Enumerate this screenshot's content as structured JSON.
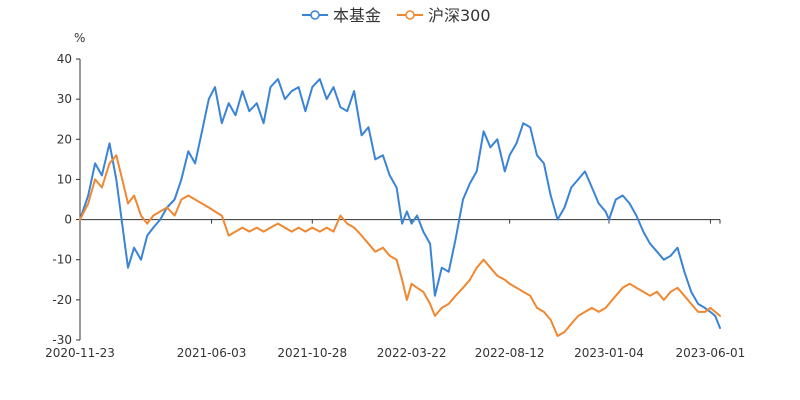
{
  "chart_data": {
    "type": "line",
    "ylabel": "%",
    "ylim": [
      -30,
      40
    ],
    "yticks": [
      40,
      30,
      20,
      10,
      0,
      -10,
      -20,
      -30
    ],
    "xtick_labels": [
      "2020-11-23",
      "2021-06-03",
      "2021-10-28",
      "2022-03-22",
      "2022-08-12",
      "2023-01-04",
      "2023-06-01"
    ],
    "x_range": [
      "2020-11-23",
      "2023-06-15"
    ],
    "grid": false,
    "legend_position": "top-center",
    "colors": {
      "fund": "#3a84d8",
      "index": "#f08731",
      "axis": "#333333"
    },
    "series": [
      {
        "name": "本基金",
        "color": "#3a84d8",
        "points": [
          [
            "2020-11-23",
            0
          ],
          [
            "2020-12-05",
            6
          ],
          [
            "2020-12-15",
            14
          ],
          [
            "2020-12-25",
            11
          ],
          [
            "2021-01-05",
            19
          ],
          [
            "2021-01-15",
            10
          ],
          [
            "2021-01-25",
            -3
          ],
          [
            "2021-02-01",
            -12
          ],
          [
            "2021-02-10",
            -7
          ],
          [
            "2021-02-20",
            -10
          ],
          [
            "2021-03-01",
            -4
          ],
          [
            "2021-03-10",
            -2
          ],
          [
            "2021-03-20",
            0
          ],
          [
            "2021-03-30",
            3
          ],
          [
            "2021-04-10",
            5
          ],
          [
            "2021-04-20",
            10
          ],
          [
            "2021-04-30",
            17
          ],
          [
            "2021-05-10",
            14
          ],
          [
            "2021-05-20",
            22
          ],
          [
            "2021-05-30",
            30
          ],
          [
            "2021-06-08",
            33
          ],
          [
            "2021-06-18",
            24
          ],
          [
            "2021-06-28",
            29
          ],
          [
            "2021-07-08",
            26
          ],
          [
            "2021-07-18",
            32
          ],
          [
            "2021-07-28",
            27
          ],
          [
            "2021-08-08",
            29
          ],
          [
            "2021-08-18",
            24
          ],
          [
            "2021-08-28",
            33
          ],
          [
            "2021-09-08",
            35
          ],
          [
            "2021-09-18",
            30
          ],
          [
            "2021-09-28",
            32
          ],
          [
            "2021-10-08",
            33
          ],
          [
            "2021-10-18",
            27
          ],
          [
            "2021-10-28",
            33
          ],
          [
            "2021-11-08",
            35
          ],
          [
            "2021-11-18",
            30
          ],
          [
            "2021-11-28",
            33
          ],
          [
            "2021-12-08",
            28
          ],
          [
            "2021-12-18",
            27
          ],
          [
            "2021-12-28",
            32
          ],
          [
            "2022-01-08",
            21
          ],
          [
            "2022-01-18",
            23
          ],
          [
            "2022-01-28",
            15
          ],
          [
            "2022-02-08",
            16
          ],
          [
            "2022-02-18",
            11
          ],
          [
            "2022-02-28",
            8
          ],
          [
            "2022-03-08",
            -1
          ],
          [
            "2022-03-15",
            2
          ],
          [
            "2022-03-22",
            -1
          ],
          [
            "2022-03-30",
            1
          ],
          [
            "2022-04-08",
            -3
          ],
          [
            "2022-04-18",
            -6
          ],
          [
            "2022-04-25",
            -19
          ],
          [
            "2022-05-05",
            -12
          ],
          [
            "2022-05-15",
            -13
          ],
          [
            "2022-05-25",
            -5
          ],
          [
            "2022-06-05",
            5
          ],
          [
            "2022-06-15",
            9
          ],
          [
            "2022-06-25",
            12
          ],
          [
            "2022-07-05",
            22
          ],
          [
            "2022-07-15",
            18
          ],
          [
            "2022-07-25",
            20
          ],
          [
            "2022-08-05",
            12
          ],
          [
            "2022-08-12",
            16
          ],
          [
            "2022-08-22",
            19
          ],
          [
            "2022-09-01",
            24
          ],
          [
            "2022-09-11",
            23
          ],
          [
            "2022-09-21",
            16
          ],
          [
            "2022-10-01",
            14
          ],
          [
            "2022-10-11",
            6
          ],
          [
            "2022-10-21",
            0
          ],
          [
            "2022-10-31",
            3
          ],
          [
            "2022-11-10",
            8
          ],
          [
            "2022-11-20",
            10
          ],
          [
            "2022-11-30",
            12
          ],
          [
            "2022-12-10",
            8
          ],
          [
            "2022-12-20",
            4
          ],
          [
            "2022-12-30",
            2
          ],
          [
            "2023-01-04",
            0
          ],
          [
            "2023-01-14",
            5
          ],
          [
            "2023-01-24",
            6
          ],
          [
            "2023-02-03",
            4
          ],
          [
            "2023-02-13",
            1
          ],
          [
            "2023-02-23",
            -3
          ],
          [
            "2023-03-05",
            -6
          ],
          [
            "2023-03-15",
            -8
          ],
          [
            "2023-03-25",
            -10
          ],
          [
            "2023-04-04",
            -9
          ],
          [
            "2023-04-14",
            -7
          ],
          [
            "2023-04-24",
            -13
          ],
          [
            "2023-05-04",
            -18
          ],
          [
            "2023-05-14",
            -21
          ],
          [
            "2023-05-24",
            -22
          ],
          [
            "2023-06-01",
            -23
          ],
          [
            "2023-06-08",
            -24
          ],
          [
            "2023-06-15",
            -27
          ]
        ]
      },
      {
        "name": "沪深300",
        "color": "#f08731",
        "points": [
          [
            "2020-11-23",
            0
          ],
          [
            "2020-12-05",
            4
          ],
          [
            "2020-12-15",
            10
          ],
          [
            "2020-12-25",
            8
          ],
          [
            "2021-01-05",
            14
          ],
          [
            "2021-01-15",
            16
          ],
          [
            "2021-01-25",
            9
          ],
          [
            "2021-02-01",
            4
          ],
          [
            "2021-02-10",
            6
          ],
          [
            "2021-02-20",
            1
          ],
          [
            "2021-03-01",
            -1
          ],
          [
            "2021-03-10",
            1
          ],
          [
            "2021-03-20",
            2
          ],
          [
            "2021-03-30",
            3
          ],
          [
            "2021-04-10",
            1
          ],
          [
            "2021-04-20",
            5
          ],
          [
            "2021-04-30",
            6
          ],
          [
            "2021-05-10",
            5
          ],
          [
            "2021-05-20",
            4
          ],
          [
            "2021-05-30",
            3
          ],
          [
            "2021-06-08",
            2
          ],
          [
            "2021-06-18",
            1
          ],
          [
            "2021-06-28",
            -4
          ],
          [
            "2021-07-08",
            -3
          ],
          [
            "2021-07-18",
            -2
          ],
          [
            "2021-07-28",
            -3
          ],
          [
            "2021-08-08",
            -2
          ],
          [
            "2021-08-18",
            -3
          ],
          [
            "2021-08-28",
            -2
          ],
          [
            "2021-09-08",
            -1
          ],
          [
            "2021-09-18",
            -2
          ],
          [
            "2021-09-28",
            -3
          ],
          [
            "2021-10-08",
            -2
          ],
          [
            "2021-10-18",
            -3
          ],
          [
            "2021-10-28",
            -2
          ],
          [
            "2021-11-08",
            -3
          ],
          [
            "2021-11-18",
            -2
          ],
          [
            "2021-11-28",
            -3
          ],
          [
            "2021-12-08",
            1
          ],
          [
            "2021-12-18",
            -1
          ],
          [
            "2021-12-28",
            -2
          ],
          [
            "2022-01-08",
            -4
          ],
          [
            "2022-01-18",
            -6
          ],
          [
            "2022-01-28",
            -8
          ],
          [
            "2022-02-08",
            -7
          ],
          [
            "2022-02-18",
            -9
          ],
          [
            "2022-02-28",
            -10
          ],
          [
            "2022-03-08",
            -15
          ],
          [
            "2022-03-15",
            -20
          ],
          [
            "2022-03-22",
            -16
          ],
          [
            "2022-03-30",
            -17
          ],
          [
            "2022-04-08",
            -18
          ],
          [
            "2022-04-18",
            -21
          ],
          [
            "2022-04-25",
            -24
          ],
          [
            "2022-05-05",
            -22
          ],
          [
            "2022-05-15",
            -21
          ],
          [
            "2022-05-25",
            -19
          ],
          [
            "2022-06-05",
            -17
          ],
          [
            "2022-06-15",
            -15
          ],
          [
            "2022-06-25",
            -12
          ],
          [
            "2022-07-05",
            -10
          ],
          [
            "2022-07-15",
            -12
          ],
          [
            "2022-07-25",
            -14
          ],
          [
            "2022-08-05",
            -15
          ],
          [
            "2022-08-12",
            -16
          ],
          [
            "2022-08-22",
            -17
          ],
          [
            "2022-09-01",
            -18
          ],
          [
            "2022-09-11",
            -19
          ],
          [
            "2022-09-21",
            -22
          ],
          [
            "2022-10-01",
            -23
          ],
          [
            "2022-10-11",
            -25
          ],
          [
            "2022-10-21",
            -29
          ],
          [
            "2022-10-31",
            -28
          ],
          [
            "2022-11-10",
            -26
          ],
          [
            "2022-11-20",
            -24
          ],
          [
            "2022-11-30",
            -23
          ],
          [
            "2022-12-10",
            -22
          ],
          [
            "2022-12-20",
            -23
          ],
          [
            "2022-12-30",
            -22
          ],
          [
            "2023-01-04",
            -21
          ],
          [
            "2023-01-14",
            -19
          ],
          [
            "2023-01-24",
            -17
          ],
          [
            "2023-02-03",
            -16
          ],
          [
            "2023-02-13",
            -17
          ],
          [
            "2023-02-23",
            -18
          ],
          [
            "2023-03-05",
            -19
          ],
          [
            "2023-03-15",
            -18
          ],
          [
            "2023-03-25",
            -20
          ],
          [
            "2023-04-04",
            -18
          ],
          [
            "2023-04-14",
            -17
          ],
          [
            "2023-04-24",
            -19
          ],
          [
            "2023-05-04",
            -21
          ],
          [
            "2023-05-14",
            -23
          ],
          [
            "2023-05-24",
            -23
          ],
          [
            "2023-06-01",
            -22
          ],
          [
            "2023-06-08",
            -23
          ],
          [
            "2023-06-15",
            -24
          ]
        ]
      }
    ]
  }
}
